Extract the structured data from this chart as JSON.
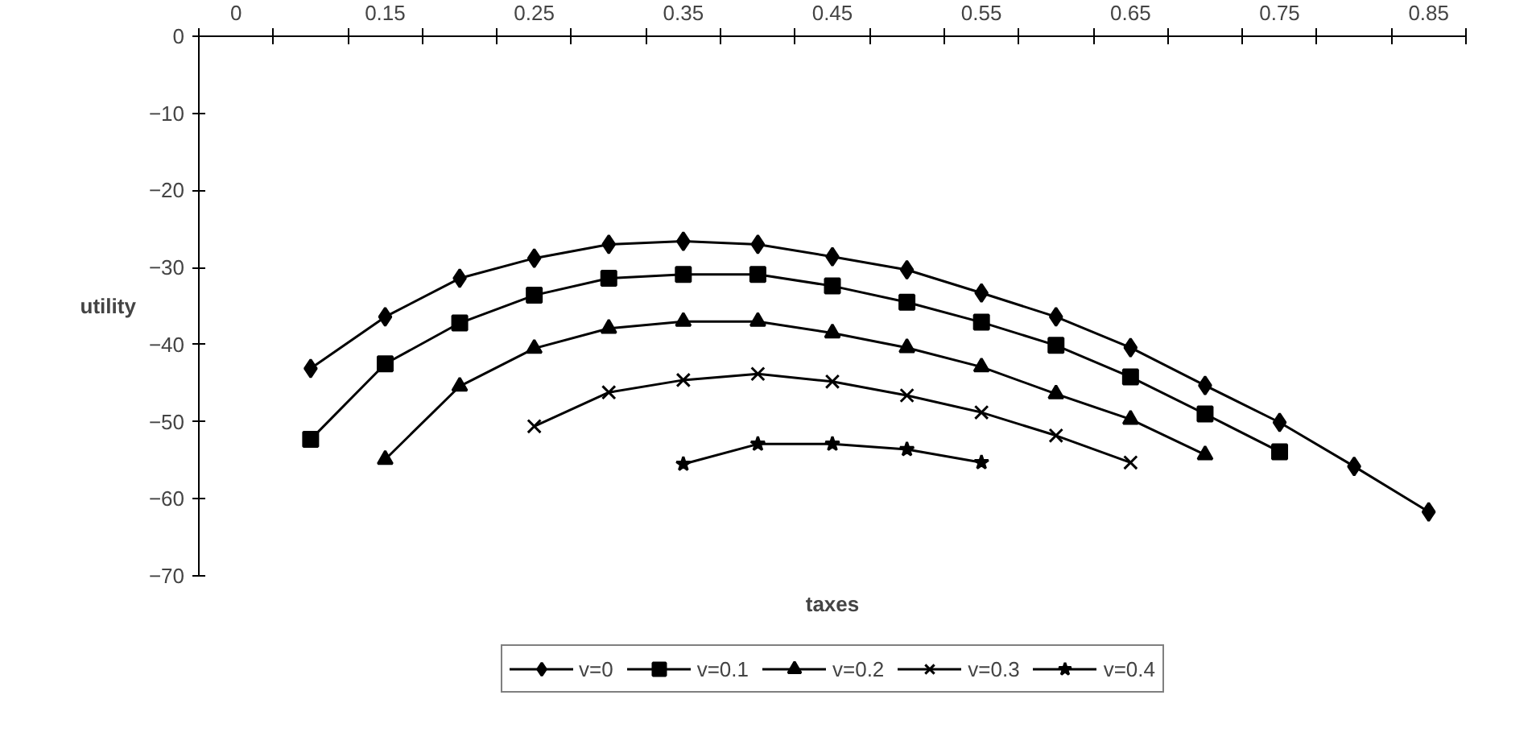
{
  "chart_data": {
    "type": "line",
    "xlabel": "taxes",
    "ylabel": "utility",
    "categories": [
      "0",
      null,
      "0.15",
      null,
      "0.25",
      null,
      "0.35",
      null,
      "0.45",
      null,
      "0.55",
      null,
      "0.65",
      null,
      "0.75",
      null,
      "0.85"
    ],
    "ylim": [
      -70,
      0
    ],
    "yticks": [
      -70,
      -60,
      -50,
      -40,
      -30,
      -20,
      -10,
      0
    ],
    "grid": false,
    "legend": "bottom",
    "line_style": "solid",
    "series": [
      {
        "name": "v=0",
        "color": "#000000",
        "marker": "diamond",
        "values": [
          null,
          -43.1,
          -36.4,
          -31.4,
          -28.8,
          -27.0,
          -26.6,
          -27.0,
          -28.6,
          -30.3,
          -33.3,
          -36.4,
          -40.4,
          -45.3,
          -50.1,
          -55.8,
          -61.7
        ]
      },
      {
        "name": "v=0.1",
        "color": "#000000",
        "marker": "square",
        "values": [
          null,
          -52.3,
          -42.5,
          -37.2,
          -33.6,
          -31.4,
          -30.9,
          -30.9,
          -32.4,
          -34.5,
          -37.1,
          -40.1,
          -44.2,
          -49.0,
          -53.9,
          null,
          null
        ]
      },
      {
        "name": "v=0.2",
        "color": "#000000",
        "marker": "triangle",
        "values": [
          null,
          null,
          -54.9,
          -45.4,
          -40.5,
          -37.9,
          -37.0,
          -37.0,
          -38.5,
          -40.4,
          -42.9,
          -46.4,
          -49.7,
          -54.3,
          null,
          null,
          null
        ]
      },
      {
        "name": "v=0.3",
        "color": "#000000",
        "marker": "cross",
        "values": [
          null,
          null,
          null,
          null,
          -50.6,
          -46.2,
          -44.6,
          -43.8,
          -44.8,
          -46.6,
          -48.8,
          -51.8,
          -55.3,
          null,
          null,
          null,
          null
        ]
      },
      {
        "name": "v=0.4",
        "color": "#000000",
        "marker": "star",
        "values": [
          null,
          null,
          null,
          null,
          null,
          null,
          -55.5,
          -52.9,
          -52.9,
          -53.6,
          -55.3,
          null,
          null,
          null,
          null,
          null,
          null
        ]
      }
    ]
  }
}
